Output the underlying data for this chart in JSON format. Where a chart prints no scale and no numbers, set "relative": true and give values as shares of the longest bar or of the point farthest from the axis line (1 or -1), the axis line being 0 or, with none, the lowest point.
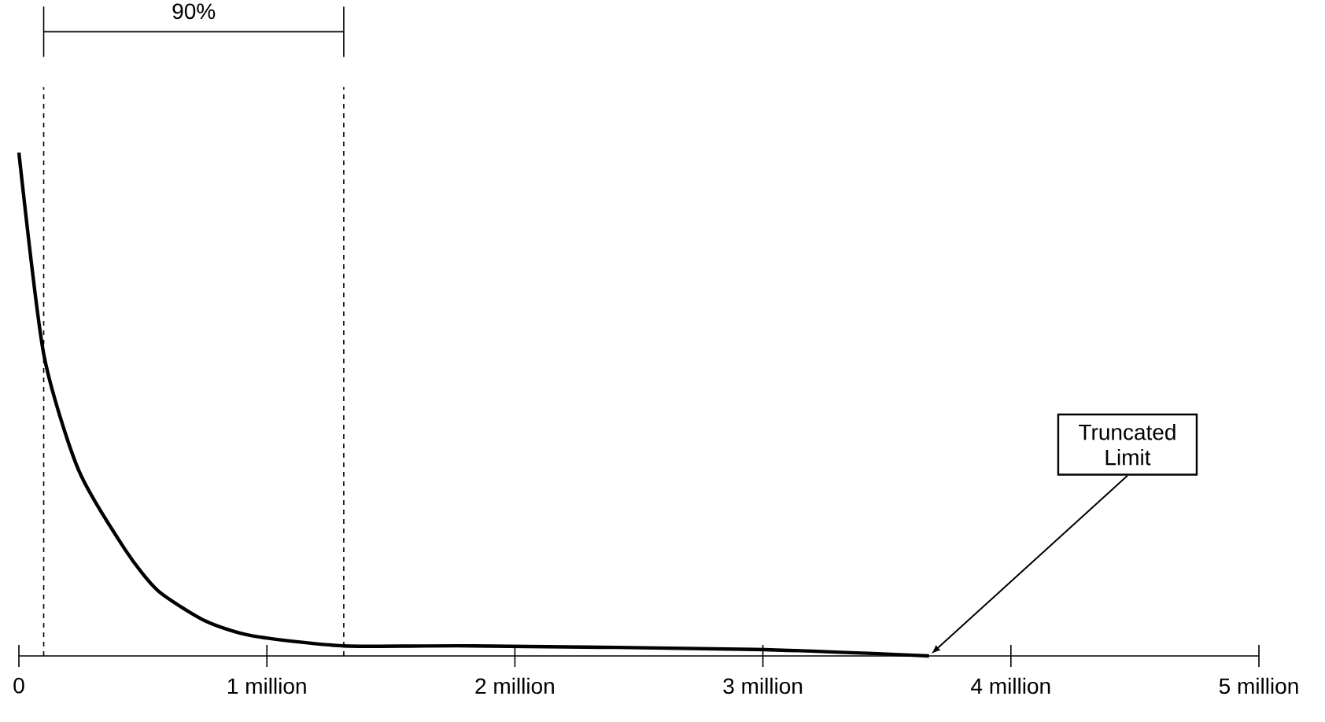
{
  "chart_data": {
    "type": "line",
    "relative": true,
    "x": [
      0,
      0.1,
      0.24,
      0.43,
      0.56,
      0.75,
      0.94,
      1.31,
      1.83,
      2.97,
      3.67
    ],
    "series": [
      {
        "color": "#000000",
        "values": [
          1.0,
          0.6,
          0.37,
          0.21,
          0.13,
          0.07,
          0.04,
          0.02,
          0.02,
          0.013,
          0
        ]
      }
    ],
    "xlim": [
      0,
      5
    ],
    "xticks": [
      0,
      {
        "value": 1,
        "label": "1 million"
      },
      {
        "value": 2,
        "label": "2 million"
      },
      {
        "value": 3,
        "label": "3 million"
      },
      {
        "value": 4,
        "label": "4 million"
      },
      {
        "value": 5,
        "label": "5 million"
      }
    ],
    "ref_lines": [
      {
        "axis": "x",
        "value": 0.1,
        "line_style": "dashed"
      },
      {
        "axis": "x",
        "value": 1.31,
        "line_style": "dashed"
      }
    ],
    "annotations": [
      "90%",
      "Truncated Limit"
    ],
    "grid": false,
    "marker": "none",
    "line_style": "solid"
  }
}
